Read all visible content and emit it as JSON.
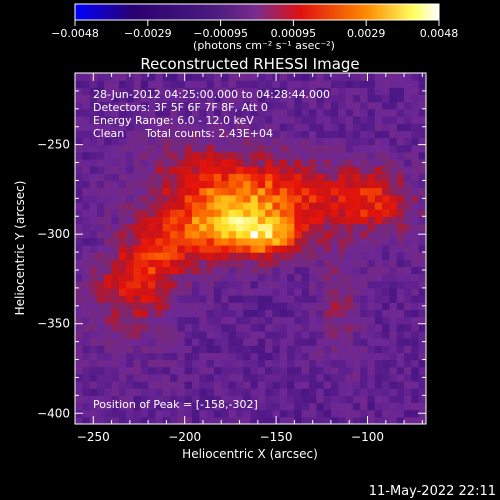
{
  "colorbar": {
    "tick_labels": [
      "-0.0048",
      "-0.0029",
      "-0.00095",
      "0.00095",
      "0.0029",
      "0.0048"
    ],
    "units_label": "(photons cm⁻² s⁻¹ asec⁻²)",
    "range": [
      -0.0048,
      0.0048
    ]
  },
  "chart_data": {
    "type": "heatmap",
    "title": "Reconstructed RHESSI Image",
    "xlabel": "Heliocentric X (arcsec)",
    "ylabel": "Heliocentric Y (arcsec)",
    "xlim": [
      -260,
      -68
    ],
    "ylim": [
      -406,
      -210
    ],
    "x_ticks": [
      -250,
      -200,
      -150,
      -100
    ],
    "y_ticks": [
      -250,
      -300,
      -350,
      -400
    ],
    "x_tick_labels": [
      "−250",
      "−200",
      "−150",
      "−100"
    ],
    "y_tick_labels": [
      "−250",
      "−300",
      "−350",
      "−400"
    ],
    "colormap": [
      "#0000ff",
      "#300060",
      "#6a2ea0",
      "#e81010",
      "#ff8000",
      "#ffff80",
      "#ffffff"
    ],
    "peak": {
      "x": -158,
      "y": -302
    },
    "annotations": [
      "28-Jun-2012 04:25:00.000 to 04:28:44.000",
      "Detectors: 3F 5F 6F 7F 8F, Att 0",
      "Energy Range: 6.0 - 12.0 keV",
      "Clean      Total counts: 2.43E+04"
    ],
    "peak_label": "Position of Peak = [-158,-302]"
  },
  "footer": {
    "timestamp": "11-May-2022 22:11"
  }
}
